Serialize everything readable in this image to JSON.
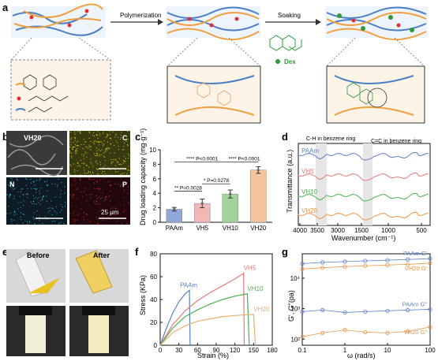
{
  "panel_letters": [
    "a",
    "b",
    "c",
    "d",
    "e",
    "f",
    "g"
  ],
  "panel_a": {
    "step1_label": "Polymerization",
    "step2_label": "Soaking",
    "dex_label": "Dex"
  },
  "panel_b": {
    "tiles": [
      "VH20",
      "C",
      "N",
      "P"
    ],
    "scale_label": "25 μm"
  },
  "panel_e": {
    "before_label": "Before",
    "after_label": "After"
  },
  "chart_data": [
    {
      "panel": "c",
      "type": "bar",
      "categories": [
        "PAAm",
        "VH5",
        "VH10",
        "VH20"
      ],
      "values": [
        1.8,
        2.6,
        3.9,
        7.2
      ],
      "errors": [
        0.25,
        0.6,
        0.55,
        0.45
      ],
      "colors": [
        "#8fa8d8",
        "#f4b7b7",
        "#a3d39c",
        "#f6c39f"
      ],
      "ylabel": "Drug loading capacity (mg·g⁻¹)",
      "ylim": [
        0,
        10
      ],
      "yticks": [
        0,
        2,
        4,
        6,
        8,
        10
      ],
      "significance": [
        {
          "pair": [
            "PAAm",
            "VH5"
          ],
          "label": "** P=0.0028"
        },
        {
          "pair": [
            "VH5",
            "VH10"
          ],
          "label": "* P=0.0278"
        },
        {
          "pair": [
            "PAAm",
            "VH10"
          ],
          "label": "**** P<0.0001"
        },
        {
          "pair": [
            "VH10",
            "VH20"
          ],
          "label": "**** P<0.0001"
        }
      ]
    },
    {
      "panel": "d",
      "type": "line",
      "xlabel": "Wavenumber (cm⁻¹)",
      "ylabel": "Transmittance (a.u.)",
      "xticks": [
        "4000",
        "3500",
        "3000",
        "1500",
        "1000",
        "500"
      ],
      "annotations": [
        "C-H in benzene ring",
        "C=C in benzene ring"
      ],
      "series": [
        {
          "name": "PAAm",
          "color": "#5b7fc7"
        },
        {
          "name": "VH5",
          "color": "#e07a7a"
        },
        {
          "name": "VH10",
          "color": "#4caf50"
        },
        {
          "name": "VH20",
          "color": "#e8954a"
        }
      ]
    },
    {
      "panel": "f",
      "type": "line",
      "xlabel": "Strain (%)",
      "ylabel": "Stress (KPa)",
      "xlim": [
        0,
        180
      ],
      "ylim": [
        0,
        80
      ],
      "xticks": [
        0,
        30,
        60,
        90,
        120,
        150,
        180
      ],
      "yticks": [
        0,
        20,
        40,
        60,
        80
      ],
      "series": [
        {
          "name": "PAAm",
          "color": "#5b7fc7",
          "x": [
            0,
            10,
            20,
            30,
            40,
            47,
            48
          ],
          "y": [
            0,
            15,
            28,
            38,
            45,
            48,
            0
          ]
        },
        {
          "name": "VH5",
          "color": "#e07a7a",
          "x": [
            0,
            20,
            40,
            60,
            80,
            100,
            120,
            134,
            135
          ],
          "y": [
            0,
            18,
            30,
            39,
            46,
            52,
            58,
            63,
            0
          ]
        },
        {
          "name": "VH10",
          "color": "#4caf50",
          "x": [
            0,
            20,
            40,
            60,
            80,
            100,
            120,
            140,
            143
          ],
          "y": [
            0,
            15,
            25,
            31,
            36,
            40,
            43,
            45,
            0
          ]
        },
        {
          "name": "VH20",
          "color": "#e8b070",
          "x": [
            0,
            20,
            40,
            60,
            80,
            100,
            120,
            150,
            153
          ],
          "y": [
            0,
            11,
            17,
            21,
            23,
            25,
            26,
            27,
            0
          ]
        }
      ]
    },
    {
      "panel": "g",
      "type": "scatter",
      "xlabel": "ω (rad/s)",
      "ylabel": "G', G\"(pa)",
      "xscale": "log",
      "yscale": "log",
      "xticks": [
        "0.1",
        "1",
        "10",
        "100"
      ],
      "yticks": [
        "10²",
        "10³",
        "10⁴"
      ],
      "series": [
        {
          "name": "PAAm G'",
          "color": "#5b7fc7",
          "x": [
            0.1,
            0.3,
            1,
            3,
            10,
            30,
            100
          ],
          "y": [
            30000,
            33000,
            35000,
            37000,
            39000,
            41000,
            44000
          ]
        },
        {
          "name": "VH20 G'",
          "color": "#e8954a",
          "x": [
            0.1,
            0.3,
            1,
            3,
            10,
            30,
            100
          ],
          "y": [
            20000,
            22000,
            24000,
            25500,
            27000,
            28500,
            31000
          ]
        },
        {
          "name": "PAAm G\"",
          "color": "#5b7fc7",
          "x": [
            0.1,
            0.3,
            1,
            3,
            10,
            30,
            100
          ],
          "y": [
            800,
            900,
            750,
            800,
            850,
            900,
            950
          ]
        },
        {
          "name": "VH20 G\"",
          "color": "#e8954a",
          "x": [
            0.1,
            0.3,
            1,
            3,
            10,
            30,
            100
          ],
          "y": [
            120,
            160,
            200,
            170,
            160,
            180,
            250
          ]
        }
      ]
    }
  ]
}
